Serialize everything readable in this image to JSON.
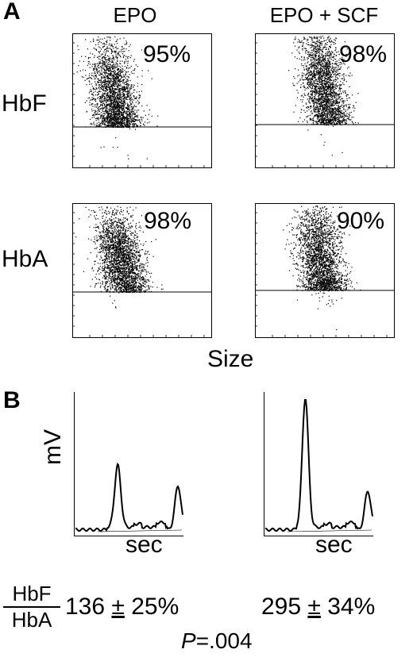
{
  "figure": {
    "panel_a_label": "A",
    "panel_b_label": "B",
    "columns": [
      "EPO",
      "EPO + SCF"
    ],
    "rows": [
      "HbF",
      "HbA"
    ],
    "x_axis_label": "Size",
    "chrom_y_label": "mV",
    "chrom_x_label": "sec",
    "ratio_numerator": "HbF",
    "ratio_denominator": "HbA",
    "epo_stat": {
      "value": "136",
      "pm": "±",
      "err": "25%"
    },
    "epo_scf_stat": {
      "value": "295",
      "pm": "±",
      "err": "34%"
    },
    "p_label": "P",
    "p_value": "=.004"
  },
  "chart_data": [
    {
      "type": "scatter",
      "panel": "A",
      "row": "HbF",
      "column": "EPO",
      "percent_text": "95%",
      "percent": 95,
      "gate": "horizontal line",
      "grid": false
    },
    {
      "type": "scatter",
      "panel": "A",
      "row": "HbF",
      "column": "EPO + SCF",
      "percent_text": "98%",
      "percent": 98,
      "gate": "horizontal line",
      "grid": false
    },
    {
      "type": "scatter",
      "panel": "A",
      "row": "HbA",
      "column": "EPO",
      "percent_text": "98%",
      "percent": 98,
      "gate": "horizontal line",
      "grid": false
    },
    {
      "type": "scatter",
      "panel": "A",
      "row": "HbA",
      "column": "EPO + SCF",
      "percent_text": "90%",
      "percent": 90,
      "gate": "horizontal line",
      "grid": false
    },
    {
      "type": "line",
      "panel": "B",
      "column": "EPO",
      "ylabel": "mV",
      "xlabel": "sec",
      "peaks": [
        {
          "x": 0.4,
          "height": 0.48
        },
        {
          "x": 0.95,
          "height": 0.34
        }
      ]
    },
    {
      "type": "line",
      "panel": "B",
      "column": "EPO + SCF",
      "ylabel": "mV",
      "xlabel": "sec",
      "peaks": [
        {
          "x": 0.38,
          "height": 1.0
        },
        {
          "x": 0.95,
          "height": 0.3
        }
      ]
    }
  ]
}
